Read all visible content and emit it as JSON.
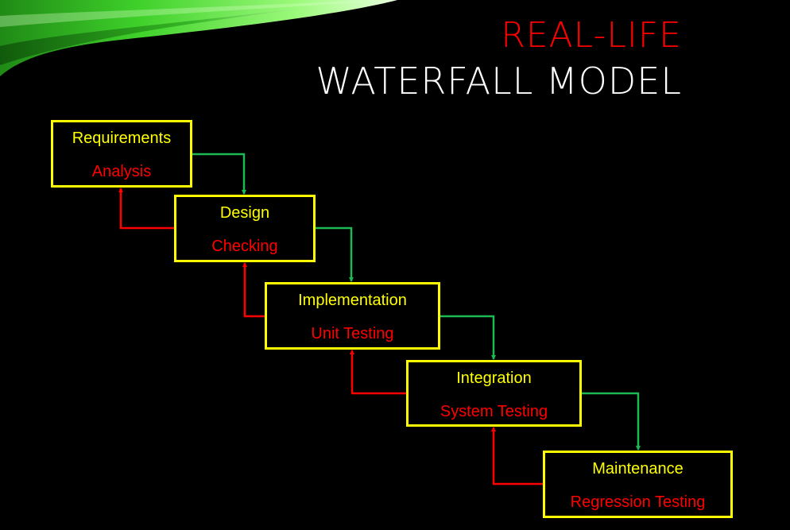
{
  "title": {
    "line1": "REAL-LIFE",
    "line2": "WATERFALL MODEL"
  },
  "colors": {
    "background": "#000000",
    "title_accent": "#ff0000",
    "title_main": "#ffffff",
    "box_border": "#ffff00",
    "phase_name": "#ffff00",
    "phase_activity": "#ff0000",
    "forward_arrow": "#1db954",
    "feedback_arrow": "#ff0000"
  },
  "phases": [
    {
      "name": "Requirements",
      "activity": "Analysis"
    },
    {
      "name": "Design",
      "activity": "Checking"
    },
    {
      "name": "Implementation",
      "activity": "Unit Testing"
    },
    {
      "name": "Integration",
      "activity": "System Testing"
    },
    {
      "name": "Maintenance",
      "activity": "Regression Testing"
    }
  ]
}
